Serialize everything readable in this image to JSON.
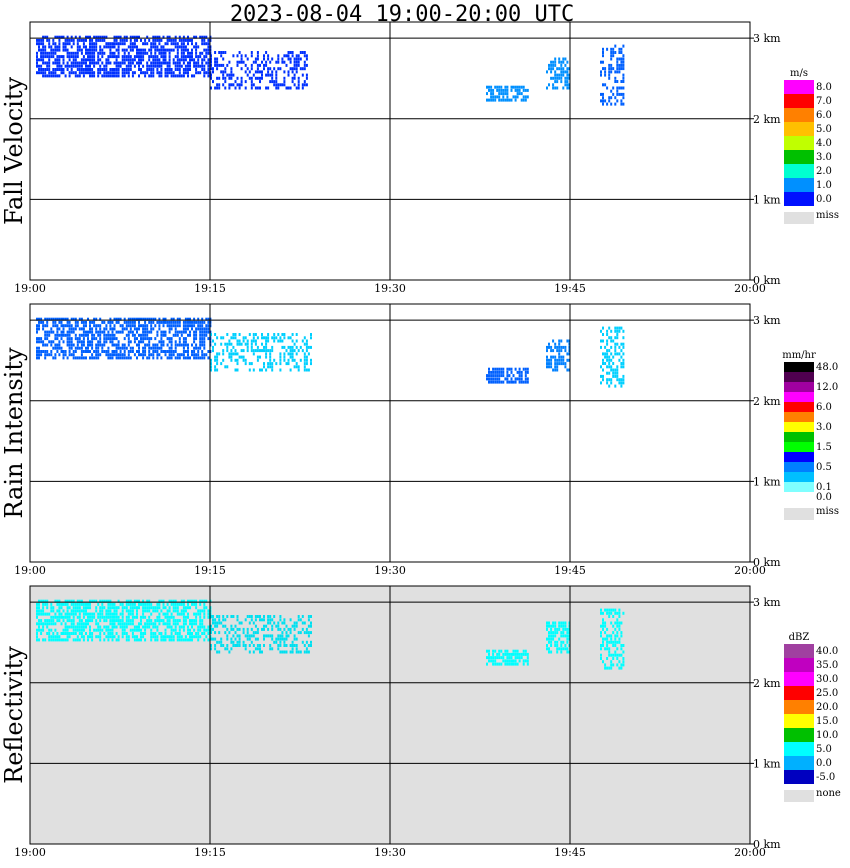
{
  "chart_data": {
    "type": "heatmap",
    "title": "2023-08-04   19:00-20:00 UTC",
    "x_range": [
      "19:00",
      "20:00"
    ],
    "x_ticks": [
      "19:00",
      "19:15",
      "19:30",
      "19:45",
      "20:00"
    ],
    "y_range_km": [
      0,
      3.2
    ],
    "y_ticks": [
      "0 km",
      "1 km",
      "2 km",
      "3 km"
    ],
    "panels": [
      {
        "name": "fall-velocity",
        "ylabel": "Fall Velocity",
        "background": "#ffffff",
        "colorbar": {
          "unit": "m/s",
          "labels": [
            "8.0",
            "7.0",
            "6.0",
            "5.0",
            "4.0",
            "3.0",
            "2.0",
            "1.0",
            "0.0"
          ],
          "colors": [
            "#ff00ff",
            "#ff0000",
            "#ff8000",
            "#ffc000",
            "#c0ff00",
            "#00c000",
            "#00ffd0",
            "#0090ff",
            "#0010ff"
          ],
          "miss_label": "miss",
          "miss_color": "#e0e0e0"
        },
        "echoes": [
          {
            "t0": 0.5,
            "t1": 15.0,
            "h0": 2.55,
            "h1": 3.05,
            "color": "#0030ff",
            "density": 0.65
          },
          {
            "t0": 15.0,
            "t1": 23.0,
            "h0": 2.4,
            "h1": 2.85,
            "color": "#0030ff",
            "density": 0.4
          },
          {
            "t0": 38.0,
            "t1": 41.5,
            "h0": 2.25,
            "h1": 2.45,
            "color": "#0090ff",
            "density": 0.75
          },
          {
            "t0": 43.0,
            "t1": 45.0,
            "h0": 2.4,
            "h1": 2.8,
            "color": "#0090ff",
            "density": 0.6
          },
          {
            "t0": 47.5,
            "t1": 49.5,
            "h0": 2.2,
            "h1": 2.95,
            "color": "#0060ff",
            "density": 0.45
          }
        ]
      },
      {
        "name": "rain-intensity",
        "ylabel": "Rain Intensity",
        "background": "#ffffff",
        "colorbar": {
          "unit": "mm/hr",
          "labels": [
            "48.0",
            "",
            "12.0",
            "",
            "6.0",
            "",
            "3.0",
            "",
            "1.5",
            "",
            "0.5",
            "",
            "0.1",
            "0.0"
          ],
          "colors": [
            "#000000",
            "#500050",
            "#a000a0",
            "#ff00ff",
            "#ff0000",
            "#ff8000",
            "#ffff00",
            "#00c000",
            "#00ff00",
            "#0000ff",
            "#0080ff",
            "#00c0ff",
            "#80ffff",
            "#ffffff"
          ],
          "miss_label": "miss",
          "miss_color": "#e0e0e0"
        },
        "echoes": [
          {
            "t0": 0.5,
            "t1": 15.0,
            "h0": 2.55,
            "h1": 3.05,
            "color": "#0060ff",
            "density": 0.65
          },
          {
            "t0": 15.0,
            "t1": 23.5,
            "h0": 2.4,
            "h1": 2.85,
            "color": "#00d0ff",
            "density": 0.4
          },
          {
            "t0": 38.0,
            "t1": 41.5,
            "h0": 2.25,
            "h1": 2.45,
            "color": "#0060ff",
            "density": 0.75
          },
          {
            "t0": 43.0,
            "t1": 45.0,
            "h0": 2.4,
            "h1": 2.8,
            "color": "#0080ff",
            "density": 0.6
          },
          {
            "t0": 47.5,
            "t1": 49.5,
            "h0": 2.2,
            "h1": 2.95,
            "color": "#00d0ff",
            "density": 0.45
          }
        ]
      },
      {
        "name": "reflectivity",
        "ylabel": "Reflectivity",
        "background": "#e0e0e0",
        "colorbar": {
          "unit": "dBZ",
          "labels": [
            "40.0",
            "35.0",
            "30.0",
            "25.0",
            "20.0",
            "15.0",
            "10.0",
            "5.0",
            "0.0",
            "-5.0"
          ],
          "colors": [
            "#a040a0",
            "#c000c0",
            "#ff00ff",
            "#ff0000",
            "#ff8000",
            "#ffff00",
            "#00c000",
            "#00ffff",
            "#00b0ff",
            "#0000c0"
          ],
          "miss_label": "none",
          "miss_color": "#e0e0e0"
        },
        "echoes": [
          {
            "t0": 0.5,
            "t1": 15.0,
            "h0": 2.55,
            "h1": 3.05,
            "color": "#00ffff",
            "density": 0.65
          },
          {
            "t0": 15.0,
            "t1": 23.5,
            "h0": 2.4,
            "h1": 2.85,
            "color": "#00e0f0",
            "density": 0.4
          },
          {
            "t0": 38.0,
            "t1": 41.5,
            "h0": 2.25,
            "h1": 2.45,
            "color": "#00ffff",
            "density": 0.75
          },
          {
            "t0": 43.0,
            "t1": 45.0,
            "h0": 2.4,
            "h1": 2.8,
            "color": "#00ffff",
            "density": 0.6
          },
          {
            "t0": 47.5,
            "t1": 49.5,
            "h0": 2.2,
            "h1": 2.95,
            "color": "#00ffff",
            "density": 0.45
          }
        ]
      }
    ]
  }
}
